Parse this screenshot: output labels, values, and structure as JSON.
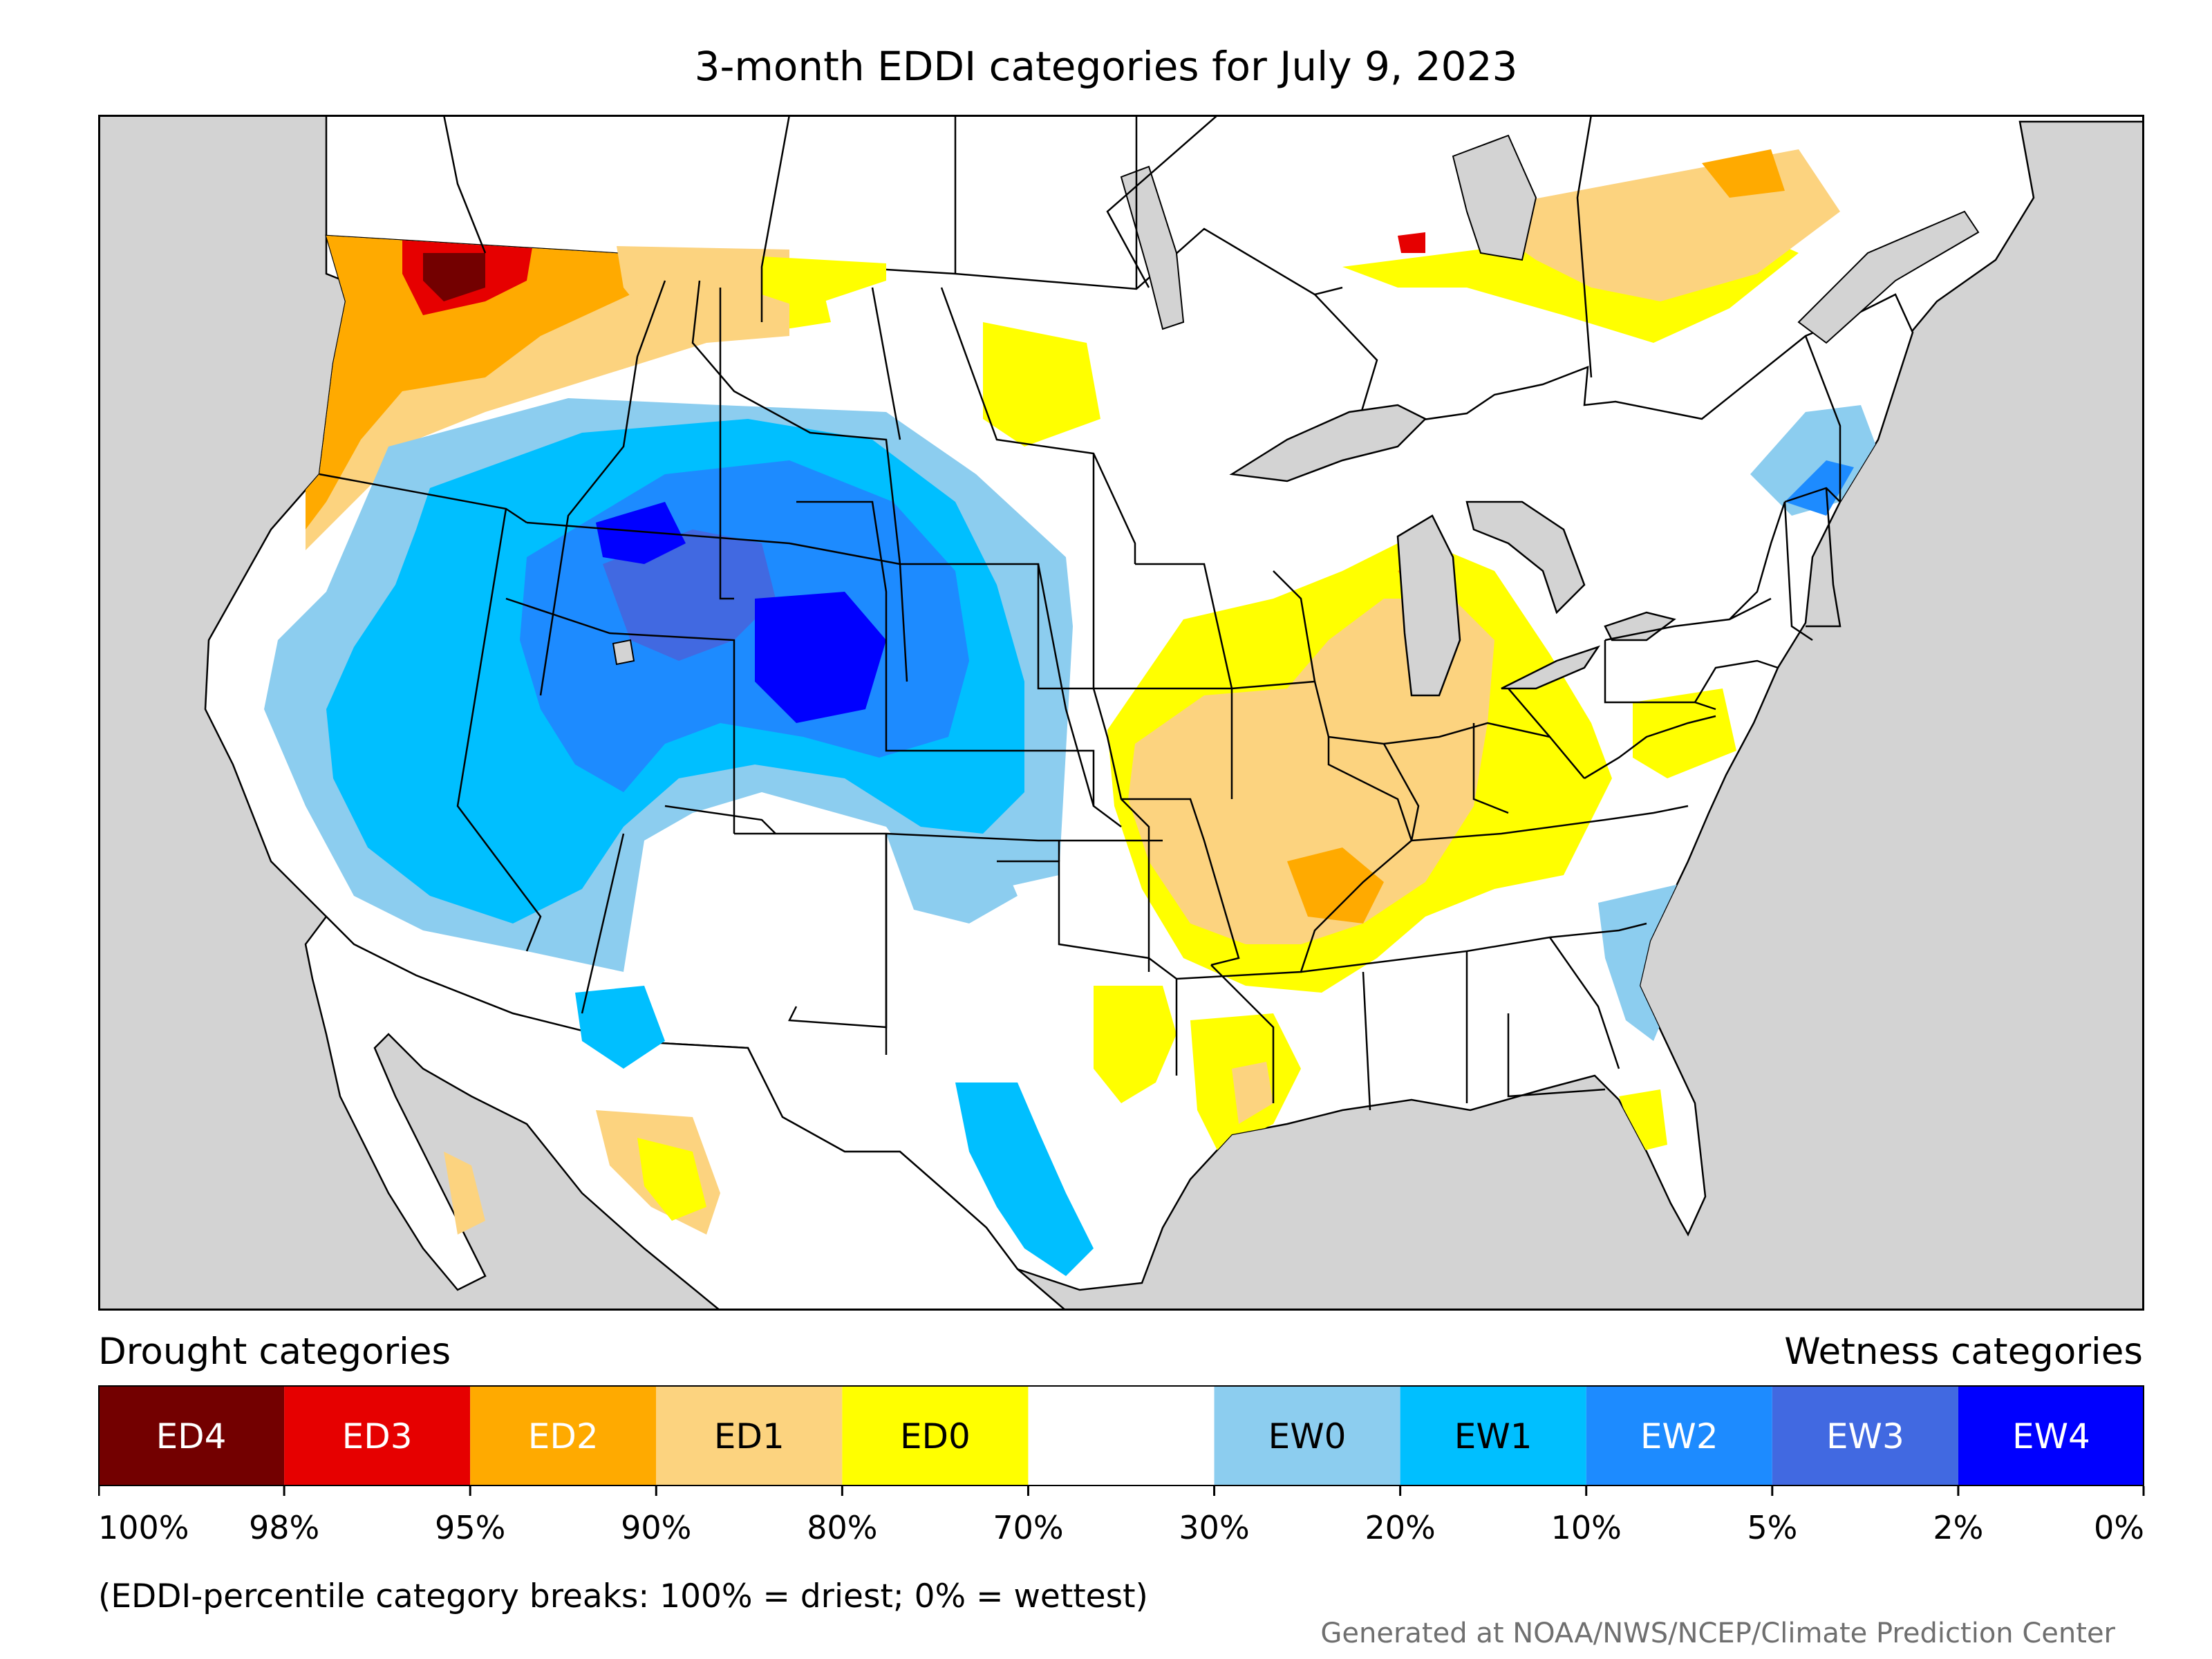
{
  "title": "3-month EDDI categories for July 9, 2023",
  "colors": {
    "ED4": "#730000",
    "ED3": "#e60000",
    "ED2": "#ffaa00",
    "ED1": "#fcd37f",
    "ED0": "#ffff00",
    "neutral": "#ffffff",
    "EW0": "#8ccdef",
    "EW1": "#00bfff",
    "EW2": "#1d8bff",
    "EW3": "#4169e1",
    "EW4": "#0000ff",
    "outside": "#d3d3d3",
    "water": "#d3d3d3"
  },
  "legend": {
    "drought_heading": "Drought categories",
    "wetness_heading": "Wetness categories",
    "categories": [
      {
        "label": "ED4",
        "color": "#730000",
        "text_color": "#ffffff"
      },
      {
        "label": "ED3",
        "color": "#e60000",
        "text_color": "#ffffff"
      },
      {
        "label": "ED2",
        "color": "#ffaa00",
        "text_color": "#ffffff"
      },
      {
        "label": "ED1",
        "color": "#fcd37f",
        "text_color": "#000000"
      },
      {
        "label": "ED0",
        "color": "#ffff00",
        "text_color": "#000000"
      },
      {
        "label": "",
        "color": "#ffffff",
        "text_color": "#000000"
      },
      {
        "label": "EW0",
        "color": "#8ccdef",
        "text_color": "#000000"
      },
      {
        "label": "EW1",
        "color": "#00bfff",
        "text_color": "#000000"
      },
      {
        "label": "EW2",
        "color": "#1d8bff",
        "text_color": "#ffffff"
      },
      {
        "label": "EW3",
        "color": "#4169e1",
        "text_color": "#ffffff"
      },
      {
        "label": "EW4",
        "color": "#0000ff",
        "text_color": "#ffffff"
      }
    ],
    "breaks": [
      "100%",
      "98%",
      "95%",
      "90%",
      "80%",
      "70%",
      "30%",
      "20%",
      "10%",
      "5%",
      "2%",
      "0%"
    ],
    "note": "(EDDI-percentile category breaks: 100% = driest; 0% = wettest)"
  },
  "credit": "Generated at NOAA/NWS/NCEP/Climate Prediction Center"
}
